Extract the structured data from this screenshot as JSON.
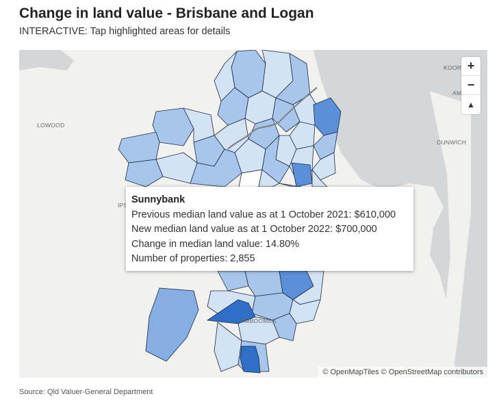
{
  "header": {
    "title": "Change in land value - Brisbane and Logan",
    "subtitle": "INTERACTIVE: Tap highlighted areas for details"
  },
  "map": {
    "place_labels": {
      "lowood": "LOWOOD",
      "dunwich": "DUNWICH",
      "jimboomba": "JIMBOOMBA",
      "ipswich": "IPS",
      "kooringal": "KOOR",
      "amity": "AM"
    },
    "controls": {
      "zoom_in": "+",
      "zoom_out": "−",
      "reset_north": "▲"
    },
    "attribution": "© OpenMapTiles © OpenStreetMap contributors",
    "colors": {
      "water": "#d4d6d8",
      "land": "#f1f1ef",
      "suburb_light": "#d3e2f5",
      "suburb_mid": "#a8c6ec",
      "suburb_dark": "#5b8fd8",
      "suburb_darkest": "#2f6fc9",
      "outline": "#1b2940"
    }
  },
  "tooltip": {
    "suburb": "Sunnybank",
    "previous": "Previous median land value as at 1 October 2021: $610,000",
    "new": "New median land value as at 1 October 2022: $700,000",
    "change": "Change in median land value: 14.80%",
    "properties": "Number of properties: 2,855"
  },
  "footer": {
    "source": "Source: Qld Valuer-General Department"
  }
}
